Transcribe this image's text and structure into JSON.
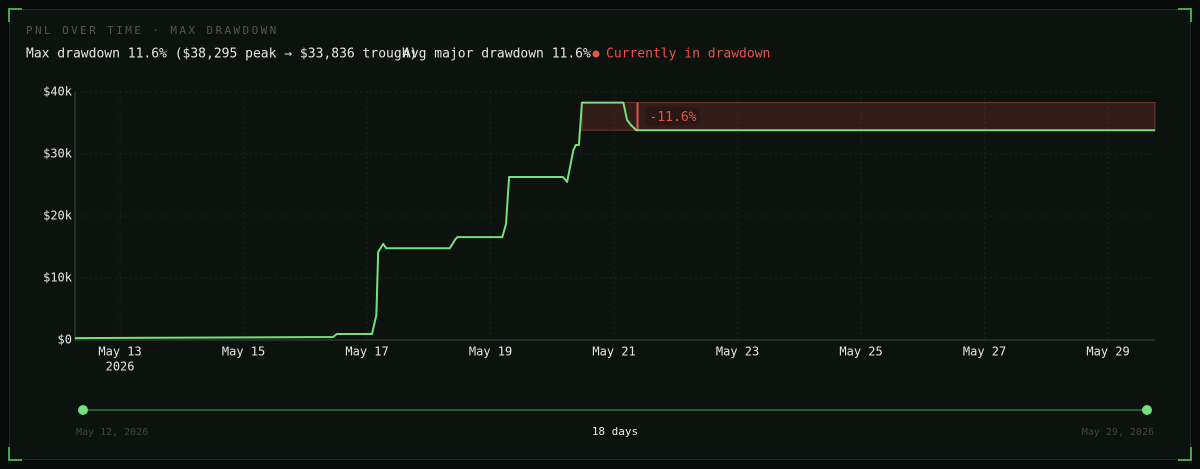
{
  "header": {
    "title": "PNL OVER TIME · MAX DRAWDOWN",
    "summary": "Max drawdown 11.6% ($38,295 peak → $33,836 trough)",
    "avg": "Avg major drawdown 11.6%",
    "status": "Currently in drawdown"
  },
  "chart_data": {
    "type": "line",
    "color": "#74e07e",
    "x": [
      12.27,
      16.45,
      16.51,
      17.08,
      17.15,
      17.18,
      17.26,
      17.31,
      18.34,
      18.42,
      18.46,
      19.19,
      19.25,
      19.3,
      20.17,
      20.24,
      20.34,
      20.38,
      20.43,
      20.48,
      21.15,
      21.21,
      21.27,
      21.36,
      29.76
    ],
    "values": [
      300,
      480,
      970,
      970,
      4000,
      14200,
      15500,
      14800,
      14800,
      16100,
      16600,
      16600,
      18700,
      26300,
      26300,
      25500,
      30600,
      31450,
      31450,
      38295,
      38295,
      35500,
      34700,
      33836,
      33836
    ],
    "xlim": [
      12.27,
      29.76
    ],
    "xticks": [
      {
        "value": 13,
        "label": "May 13",
        "sublabel": "2026"
      },
      {
        "value": 15,
        "label": "May 15"
      },
      {
        "value": 17,
        "label": "May 17"
      },
      {
        "value": 19,
        "label": "May 19"
      },
      {
        "value": 21,
        "label": "May 21"
      },
      {
        "value": 23,
        "label": "May 23"
      },
      {
        "value": 25,
        "label": "May 25"
      },
      {
        "value": 27,
        "label": "May 27"
      },
      {
        "value": 29,
        "label": "May 29"
      }
    ],
    "ylim": [
      0,
      40000
    ],
    "yticks": [
      {
        "value": 0,
        "label": "$0"
      },
      {
        "value": 10000,
        "label": "$10k"
      },
      {
        "value": 20000,
        "label": "$20k"
      },
      {
        "value": 30000,
        "label": "$30k"
      },
      {
        "value": 40000,
        "label": "$40k"
      }
    ],
    "grid": true,
    "drawdown": {
      "start": 20.48,
      "trough_x": 21.38,
      "peak": 38295,
      "trough": 33836,
      "label": "-11.6%",
      "color": "#e5534b"
    }
  },
  "range_slider": {
    "start": "May 12, 2026",
    "span": "18 days",
    "end": "May 29, 2026"
  }
}
